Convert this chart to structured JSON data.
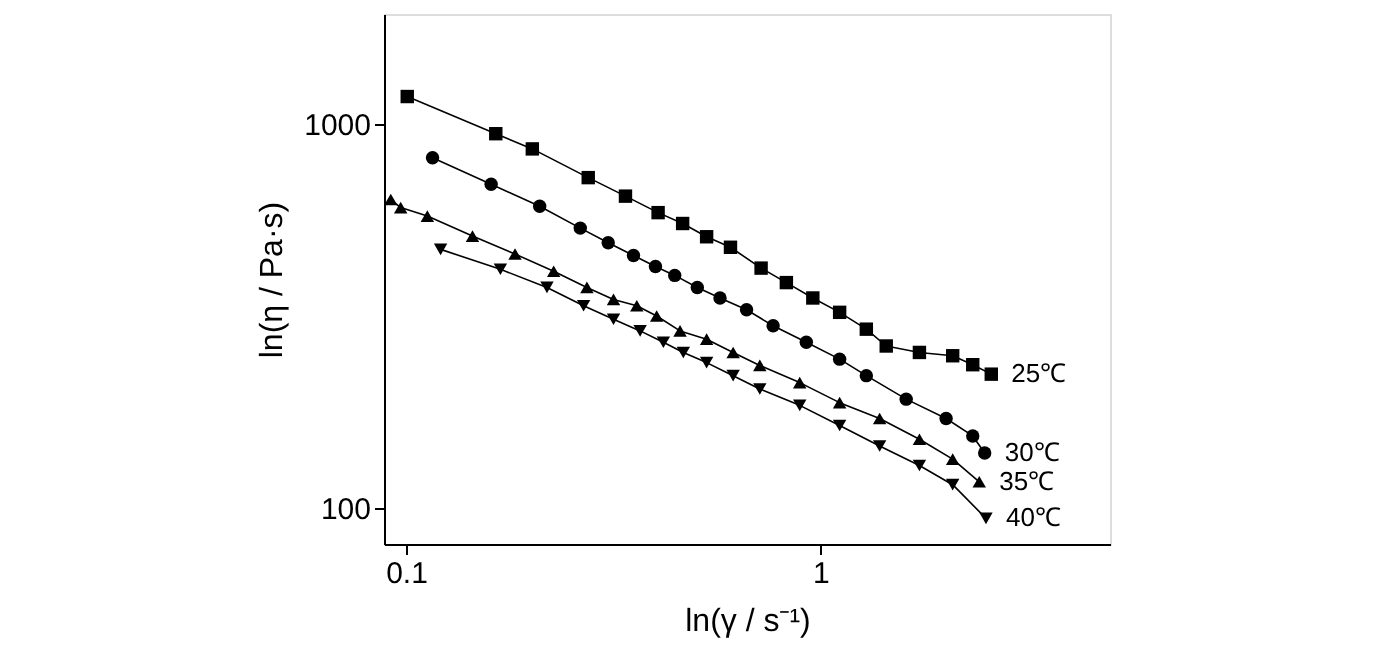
{
  "chart_data": {
    "type": "line",
    "xlabel": "ln(γ / s⁻¹)",
    "ylabel": "ln(η / Pa·s)",
    "log": "xy",
    "xlim": [
      0.0885,
      5.0
    ],
    "ylim": [
      80.6,
      1930
    ],
    "xticks": [
      0.1,
      1
    ],
    "yticks": [
      100,
      1000
    ],
    "grid": false,
    "line_style": "solid",
    "series": [
      {
        "name": "25℃",
        "color": "#000000",
        "marker": "square",
        "x": [
          0.1007,
          0.1647,
          0.2018,
          0.2753,
          0.3386,
          0.4059,
          0.4652,
          0.5315,
          0.6069,
          0.7194,
          0.8279,
          0.959,
          1.113,
          1.291,
          1.442,
          1.734,
          2.086,
          2.332,
          2.585
        ],
        "values": [
          1177,
          942,
          860,
          724,
          648,
          587,
          550,
          508,
          477,
          421,
          386,
          352,
          323,
          292,
          264,
          254,
          249,
          236,
          223
        ]
      },
      {
        "name": "30℃",
        "color": "#000000",
        "marker": "circle",
        "x": [
          0.1159,
          0.1605,
          0.2102,
          0.2634,
          0.3076,
          0.354,
          0.4,
          0.4452,
          0.5047,
          0.5726,
          0.6636,
          0.7691,
          0.925,
          1.113,
          1.291,
          1.611,
          2.011,
          2.332,
          2.492
        ],
        "values": [
          816,
          696,
          610,
          535,
          490,
          454,
          425,
          403,
          375,
          352,
          328,
          298,
          270,
          244,
          221,
          192,
          171,
          154,
          139
        ]
      },
      {
        "name": "35℃",
        "color": "#000000",
        "marker": "triangle",
        "x": [
          0.0919,
          0.0971,
          0.1126,
          0.1447,
          0.1833,
          0.2272,
          0.2733,
          0.3168,
          0.3606,
          0.4027,
          0.4585,
          0.5315,
          0.6159,
          0.7143,
          0.8916,
          1.113,
          1.39,
          1.734,
          2.086,
          2.418
        ],
        "values": [
          635,
          605,
          575,
          510,
          458,
          413,
          375,
          349,
          336,
          316,
          289,
          275,
          254,
          235,
          212,
          188,
          171,
          151,
          134,
          117
        ]
      },
      {
        "name": "40℃",
        "color": "#000000",
        "marker": "triangle-down",
        "x": [
          0.1212,
          0.169,
          0.2189,
          0.2683,
          0.3168,
          0.3673,
          0.418,
          0.467,
          0.5315,
          0.6159,
          0.7143,
          0.8916,
          1.113,
          1.39,
          1.734,
          2.086,
          2.51
        ],
        "values": [
          471,
          418,
          375,
          336,
          310,
          289,
          270,
          254,
          239,
          221,
          204,
          185,
          164,
          145,
          129,
          115,
          94
        ]
      }
    ]
  }
}
